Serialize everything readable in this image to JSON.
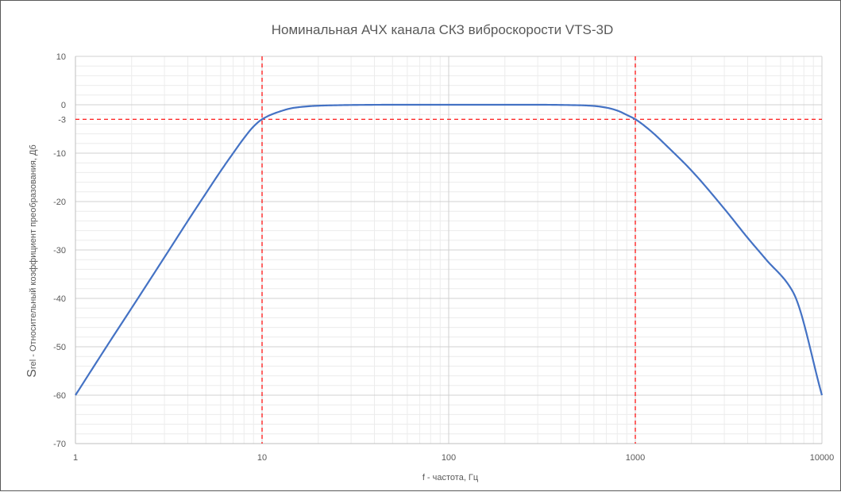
{
  "chart_data": {
    "type": "line",
    "title": "Номинальная АЧХ канала СКЗ виброскорости VTS-3D",
    "xlabel": "f - частота, Гц",
    "ylabel_prefix": "S",
    "ylabel_sub": "rel",
    "ylabel_rest": " - Относительный коэффициент преобразования, Дб",
    "x_scale": "log",
    "xlim": [
      1,
      10000
    ],
    "ylim": [
      -70,
      10
    ],
    "x_ticks": [
      {
        "value": 1,
        "label": "1"
      },
      {
        "value": 10,
        "label": "10"
      },
      {
        "value": 100,
        "label": "100"
      },
      {
        "value": 1000,
        "label": "1000"
      },
      {
        "value": 10000,
        "label": "10000"
      }
    ],
    "y_ticks": [
      {
        "value": 10,
        "label": "10"
      },
      {
        "value": 0,
        "label": "0"
      },
      {
        "value": -3,
        "label": "-3"
      },
      {
        "value": -10,
        "label": "-10"
      },
      {
        "value": -20,
        "label": "-20"
      },
      {
        "value": -30,
        "label": "-30"
      },
      {
        "value": -40,
        "label": "-40"
      },
      {
        "value": -50,
        "label": "-50"
      },
      {
        "value": -60,
        "label": "-60"
      },
      {
        "value": -70,
        "label": "-70"
      }
    ],
    "grid": true,
    "series": [
      {
        "color": "#4472c4",
        "x": [
          1,
          1.5,
          2,
          3,
          4,
          5,
          6,
          7,
          8,
          9,
          10,
          12,
          15,
          20,
          30,
          50,
          100,
          200,
          300,
          500,
          600,
          700,
          800,
          900,
          1000,
          1200,
          1500,
          2000,
          3000,
          4000,
          5000,
          7000,
          10000
        ],
        "y": [
          -60,
          -49.4,
          -42,
          -31.5,
          -24,
          -18.3,
          -13.7,
          -10,
          -6.9,
          -4.5,
          -3,
          -1.6,
          -0.6,
          -0.2,
          -0.05,
          0,
          0,
          0,
          0,
          -0.1,
          -0.25,
          -0.6,
          -1.2,
          -2.1,
          -3,
          -5.3,
          -8.8,
          -13.6,
          -21.5,
          -27.5,
          -31.9,
          -38.7,
          -60
        ]
      }
    ],
    "reference_lines": [
      {
        "orientation": "vertical",
        "value": 10,
        "color": "#ff0000",
        "style": "dashed"
      },
      {
        "orientation": "vertical",
        "value": 1000,
        "color": "#ff0000",
        "style": "dashed"
      },
      {
        "orientation": "horizontal",
        "value": -3,
        "color": "#ff0000",
        "style": "dashed"
      }
    ]
  }
}
